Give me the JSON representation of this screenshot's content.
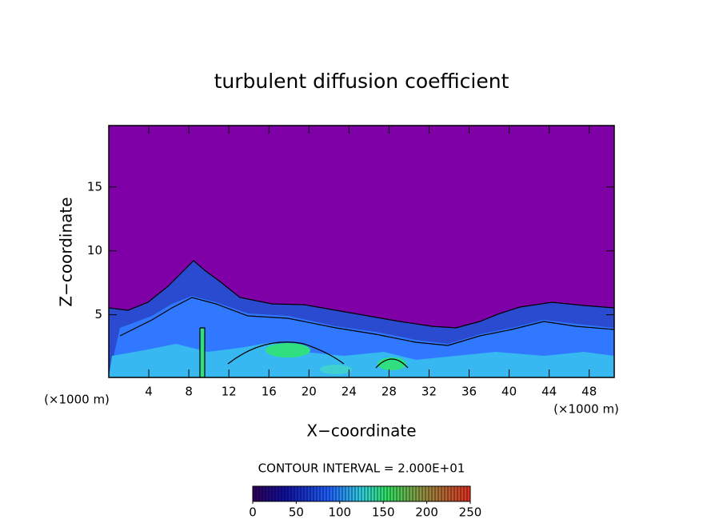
{
  "chart_data": {
    "type": "contour",
    "title": "turbulent diffusion coefficient",
    "x_label": "X−coordinate",
    "y_label": "Z−coordinate",
    "x_unit_label": "(×1000 m)",
    "annotation": "CONTOUR INTERVAL = 2.000E+01",
    "xlim": [
      0,
      50.5
    ],
    "xticks": [
      4,
      8,
      12,
      16,
      20,
      24,
      28,
      32,
      36,
      40,
      44,
      48
    ],
    "ylim": [
      0.1,
      19.8
    ],
    "yticks": [
      5,
      10,
      15
    ],
    "background_color": "#8000a8",
    "colorbar": {
      "lim": [
        0,
        250
      ],
      "ticks": [
        0,
        50,
        100,
        150,
        200,
        250
      ]
    }
  }
}
